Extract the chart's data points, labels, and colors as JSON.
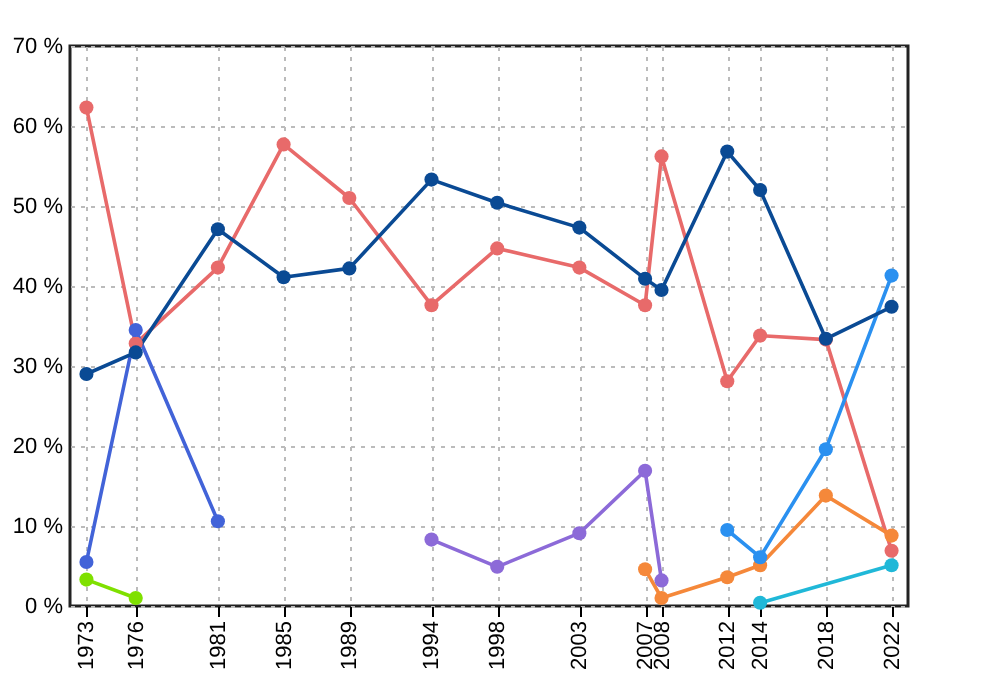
{
  "chart_data": {
    "type": "line",
    "marker": "circle",
    "line_style": "solid",
    "grid": true,
    "legend": false,
    "xlim": [
      1972,
      2023
    ],
    "xticks": [
      1973,
      1976,
      1981,
      1985,
      1989,
      1994,
      1998,
      2003,
      2007,
      2008,
      2012,
      2014,
      2018,
      2022
    ],
    "ylim": [
      0,
      70
    ],
    "yticks": [
      {
        "value": 0,
        "label": "0 %"
      },
      {
        "value": 10,
        "label": "10 %"
      },
      {
        "value": 20,
        "label": "20 %"
      },
      {
        "value": 30,
        "label": "30 %"
      },
      {
        "value": 40,
        "label": "40 %"
      },
      {
        "value": 50,
        "label": "50 %"
      },
      {
        "value": 60,
        "label": "60 %"
      },
      {
        "value": 70,
        "label": "70 %"
      }
    ],
    "series": [
      {
        "color": "#e86a6a",
        "x": [
          1973,
          1976,
          1981,
          1985,
          1989,
          1994,
          1998,
          2003,
          2007,
          2008,
          2012,
          2014,
          2018,
          2022
        ],
        "values": [
          62.3,
          32.8,
          42.3,
          57.7,
          51.0,
          37.6,
          44.7,
          42.3,
          37.6,
          56.2,
          28.1,
          33.8,
          33.3,
          6.9
        ]
      },
      {
        "color": "#4263d8",
        "x": [
          1973,
          1976,
          1981
        ],
        "values": [
          5.5,
          34.5,
          10.6
        ]
      },
      {
        "color": "#7fe000",
        "x": [
          1973,
          1976
        ],
        "values": [
          3.3,
          1.0
        ]
      },
      {
        "color": "#8c6ad8",
        "x": [
          1994,
          1998,
          2003,
          2007,
          2008
        ],
        "values": [
          8.3,
          4.9,
          9.1,
          16.9,
          3.2
        ]
      },
      {
        "color": "#f5883a",
        "x": [
          2007,
          2008,
          2012,
          2014,
          2018,
          2022
        ],
        "values": [
          4.6,
          1.0,
          3.6,
          5.1,
          13.8,
          8.8
        ]
      },
      {
        "color": "#2a90f0",
        "x": [
          2012,
          2014,
          2018,
          2022
        ],
        "values": [
          9.5,
          6.1,
          19.6,
          41.3
        ]
      },
      {
        "color": "#20b8d8",
        "x": [
          2014,
          2022
        ],
        "values": [
          0.4,
          5.1
        ]
      },
      {
        "color": "#0a4a94",
        "x": [
          1973,
          1976,
          1981,
          1985,
          1989,
          1994,
          1998,
          2003,
          2007,
          2008,
          2012,
          2014,
          2018,
          2022
        ],
        "values": [
          29.0,
          31.7,
          47.1,
          41.1,
          42.2,
          53.3,
          50.4,
          47.3,
          40.9,
          39.5,
          56.8,
          52.0,
          33.4,
          37.4
        ]
      }
    ]
  }
}
